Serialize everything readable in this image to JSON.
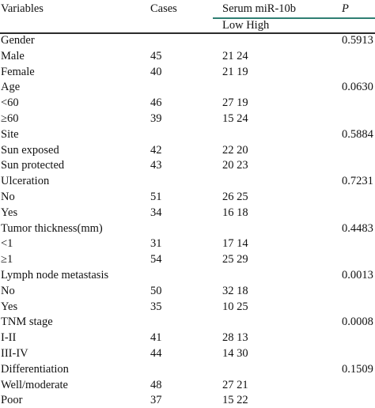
{
  "colors": {
    "rule_accent": "#2f7f73",
    "rule_dark": "#2b2b2b",
    "text": "#111111"
  },
  "header": {
    "variables": "Variables",
    "cases": "Cases",
    "serum": "Serum miR-10b",
    "p": "P",
    "sub": "Low High"
  },
  "rows": [
    {
      "var": "Gender",
      "cases": "",
      "serum": "",
      "p": "0.5913"
    },
    {
      "var": "Male",
      "cases": "45",
      "serum": "21 24",
      "p": ""
    },
    {
      "var": "Female",
      "cases": "40",
      "serum": "21 19",
      "p": ""
    },
    {
      "var": "Age",
      "cases": "",
      "serum": "",
      "p": "0.0630"
    },
    {
      "var": "<60",
      "cases": "46",
      "serum": "27 19",
      "p": ""
    },
    {
      "var": "≥60",
      "cases": "39",
      "serum": "15 24",
      "p": ""
    },
    {
      "var": "Site",
      "cases": "",
      "serum": "",
      "p": "0.5884"
    },
    {
      "var": "Sun exposed",
      "cases": "42",
      "serum": "22 20",
      "p": ""
    },
    {
      "var": "Sun protected",
      "cases": "43",
      "serum": "20 23",
      "p": ""
    },
    {
      "var": "Ulceration",
      "cases": "",
      "serum": "",
      "p": "0.7231"
    },
    {
      "var": "No",
      "cases": "51",
      "serum": "26 25",
      "p": ""
    },
    {
      "var": "Yes",
      "cases": "34",
      "serum": "16 18",
      "p": ""
    },
    {
      "var": "Tumor thickness(mm)",
      "cases": "",
      "serum": "",
      "p": "0.4483"
    },
    {
      "var": "<1",
      "cases": "31",
      "serum": "17 14",
      "p": ""
    },
    {
      "var": "≥1",
      "cases": "54",
      "serum": "25 29",
      "p": ""
    },
    {
      "var": "Lymph node metastasis",
      "cases": "",
      "serum": "",
      "p": "0.0013"
    },
    {
      "var": "No",
      "cases": "50",
      "serum": "32 18",
      "p": ""
    },
    {
      "var": "Yes",
      "cases": "35",
      "serum": "10 25",
      "p": ""
    },
    {
      "var": "TNM stage",
      "cases": "",
      "serum": "",
      "p": "0.0008"
    },
    {
      "var": "I-II",
      "cases": "41",
      "serum": "28 13",
      "p": ""
    },
    {
      "var": "III-IV",
      "cases": "44",
      "serum": "14 30",
      "p": ""
    },
    {
      "var": "Differentiation",
      "cases": "",
      "serum": "",
      "p": "0.1509"
    },
    {
      "var": "Well/moderate",
      "cases": "48",
      "serum": "27 21",
      "p": ""
    },
    {
      "var": "Poor",
      "cases": "37",
      "serum": "15 22",
      "p": ""
    }
  ]
}
